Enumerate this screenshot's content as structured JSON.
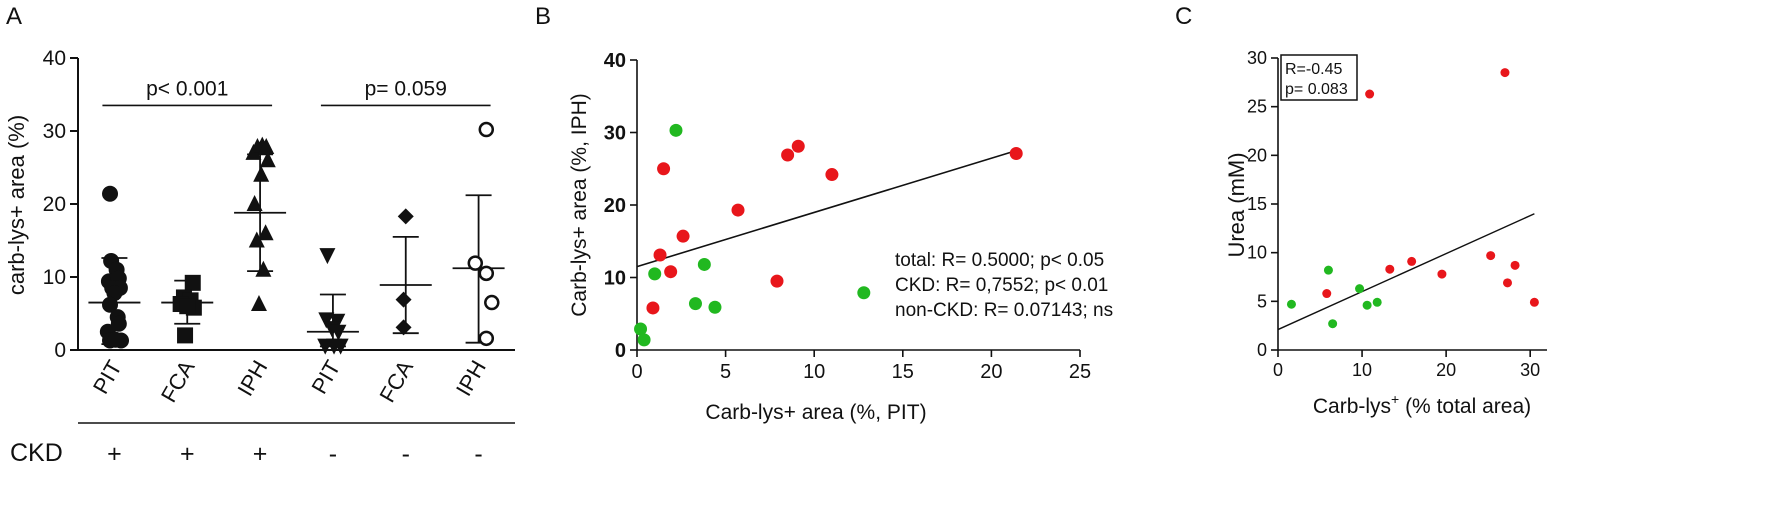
{
  "colors": {
    "red": "#e8161b",
    "green": "#21b820",
    "black": "#111111"
  },
  "panels": {
    "a": {
      "letter": "A"
    },
    "b": {
      "letter": "B"
    },
    "c": {
      "letter": "C"
    }
  },
  "chart_data": [
    {
      "type": "scatter",
      "subtype": "dot-plot-mean-sd",
      "panel": "A",
      "ylabel": "carb-lys+ area (%)",
      "ylim": [
        0,
        40
      ],
      "yticks": [
        0,
        10,
        20,
        30,
        40
      ],
      "row_label": "CKD",
      "groups": [
        {
          "label": "PIT",
          "ckd": "+",
          "marker": "circle",
          "mean": 6.5,
          "sd_low": 0.8,
          "sd_high": 12.6,
          "values": [
            [
              -0.2,
              21.4
            ],
            [
              -0.15,
              12.2
            ],
            [
              0.1,
              11.0
            ],
            [
              -0.25,
              9.4
            ],
            [
              0.2,
              9.8
            ],
            [
              -0.1,
              8.5
            ],
            [
              0.25,
              8.5
            ],
            [
              0,
              7.8
            ],
            [
              -0.2,
              6.2
            ],
            [
              0.15,
              4.5
            ],
            [
              0.2,
              3.6
            ],
            [
              -0.3,
              2.5
            ],
            [
              -0.2,
              1.3
            ],
            [
              0.3,
              1.3
            ],
            [
              0.05,
              1.4
            ]
          ]
        },
        {
          "label": "FCA",
          "ckd": "+",
          "marker": "square",
          "mean": 6.5,
          "sd_low": 3.6,
          "sd_high": 9.5,
          "values": [
            [
              0.25,
              9.2
            ],
            [
              -0.15,
              7.2
            ],
            [
              0.15,
              6.8
            ],
            [
              -0.3,
              6.3
            ],
            [
              0.3,
              5.8
            ],
            [
              0,
              6.0
            ],
            [
              -0.1,
              2.0
            ]
          ]
        },
        {
          "label": "IPH",
          "ckd": "+",
          "marker": "triangle",
          "mean": 18.8,
          "sd_low": 10.8,
          "sd_high": 26.8,
          "values": [
            [
              -0.3,
              27.0
            ],
            [
              -0.12,
              27.8
            ],
            [
              0.1,
              28.0
            ],
            [
              0.28,
              27.8
            ],
            [
              0.35,
              26.0
            ],
            [
              0.05,
              24.0
            ],
            [
              -0.25,
              20.0
            ],
            [
              0.25,
              16.0
            ],
            [
              -0.15,
              15.0
            ],
            [
              0.15,
              11.0
            ],
            [
              -0.05,
              6.3
            ]
          ]
        },
        {
          "label": "PIT",
          "ckd": "-",
          "marker": "triangle-down",
          "mean": 2.5,
          "sd_low": 0.5,
          "sd_high": 7.6,
          "values": [
            [
              -0.25,
              13.0
            ],
            [
              -0.3,
              4.2
            ],
            [
              0.2,
              4.0
            ],
            [
              -0.05,
              3.0
            ],
            [
              0.25,
              2.5
            ],
            [
              -0.35,
              0.6
            ],
            [
              0.05,
              0.6
            ],
            [
              0.35,
              0.6
            ]
          ]
        },
        {
          "label": "FCA",
          "ckd": "-",
          "marker": "diamond",
          "mean": 8.9,
          "sd_low": 2.3,
          "sd_high": 15.5,
          "values": [
            [
              0.0,
              18.3
            ],
            [
              -0.1,
              6.9
            ],
            [
              -0.1,
              3.1
            ]
          ]
        },
        {
          "label": "IPH",
          "ckd": "-",
          "marker": "open-circle",
          "mean": 11.2,
          "sd_low": 1.0,
          "sd_high": 21.2,
          "values": [
            [
              0.35,
              30.2
            ],
            [
              -0.15,
              11.9
            ],
            [
              0.35,
              10.5
            ],
            [
              0.6,
              6.5
            ],
            [
              0.35,
              1.6
            ]
          ]
        }
      ],
      "brackets": [
        {
          "from_group": 0,
          "to_group": 2,
          "y": 33.5,
          "label": "p< 0.001"
        },
        {
          "from_group": 3,
          "to_group": 5,
          "y": 33.5,
          "label": "p= 0.059"
        }
      ]
    },
    {
      "type": "scatter",
      "panel": "B",
      "xlabel": "Carb-lys+ area (%, PIT)",
      "ylabel": "Carb-lys+ area (%, IPH)",
      "xlim": [
        0,
        25
      ],
      "ylim": [
        0,
        40
      ],
      "xticks": [
        0,
        5,
        10,
        15,
        20,
        25
      ],
      "yticks": [
        0,
        10,
        20,
        30,
        40
      ],
      "series": [
        {
          "name": "CKD",
          "color": "red",
          "points": [
            [
              0.9,
              5.8
            ],
            [
              1.3,
              13.1
            ],
            [
              1.5,
              25.0
            ],
            [
              1.9,
              10.8
            ],
            [
              2.6,
              15.7
            ],
            [
              5.7,
              19.3
            ],
            [
              7.9,
              9.5
            ],
            [
              8.5,
              26.9
            ],
            [
              9.1,
              28.1
            ],
            [
              11.0,
              24.2
            ],
            [
              21.4,
              27.1
            ]
          ]
        },
        {
          "name": "non-CKD",
          "color": "green",
          "points": [
            [
              0.2,
              2.9
            ],
            [
              0.4,
              1.4
            ],
            [
              1.0,
              10.5
            ],
            [
              2.2,
              30.3
            ],
            [
              3.3,
              6.4
            ],
            [
              3.8,
              11.8
            ],
            [
              4.4,
              5.9
            ],
            [
              12.8,
              7.9
            ]
          ]
        }
      ],
      "fit_line": {
        "x": [
          0,
          21.4
        ],
        "y": [
          11.5,
          27.5
        ]
      },
      "annotations": [
        "total: R= 0.5000; p< 0.05",
        "CKD: R= 0,7552; p< 0.01",
        "non-CKD: R= 0.07143; ns"
      ]
    },
    {
      "type": "scatter",
      "panel": "C",
      "xlabel_main": "Carb-lys",
      "xlabel_sup": "+",
      "xlabel_rest": " (% total area)",
      "ylabel": "Urea (mM)",
      "xlim": [
        0,
        32
      ],
      "ylim": [
        0,
        30
      ],
      "xticks": [
        0,
        10,
        20,
        30
      ],
      "yticks": [
        0,
        5,
        10,
        15,
        20,
        25,
        30
      ],
      "series": [
        {
          "name": "CKD",
          "color": "red",
          "points": [
            [
              5.8,
              5.8
            ],
            [
              10.9,
              26.3
            ],
            [
              13.3,
              8.3
            ],
            [
              15.9,
              9.1
            ],
            [
              19.5,
              7.8
            ],
            [
              25.3,
              9.7
            ],
            [
              27.0,
              28.5
            ],
            [
              27.3,
              6.9
            ],
            [
              28.2,
              8.7
            ],
            [
              30.5,
              4.9
            ]
          ]
        },
        {
          "name": "non-CKD",
          "color": "green",
          "points": [
            [
              1.6,
              4.7
            ],
            [
              6.0,
              8.2
            ],
            [
              6.5,
              2.7
            ],
            [
              9.7,
              6.3
            ],
            [
              10.6,
              4.6
            ],
            [
              11.8,
              4.9
            ]
          ]
        }
      ],
      "fit_line": {
        "x": [
          0,
          30.5
        ],
        "y": [
          2.1,
          14.0
        ]
      },
      "annotations": [
        "R=-0.45",
        "p= 0.083"
      ]
    }
  ]
}
